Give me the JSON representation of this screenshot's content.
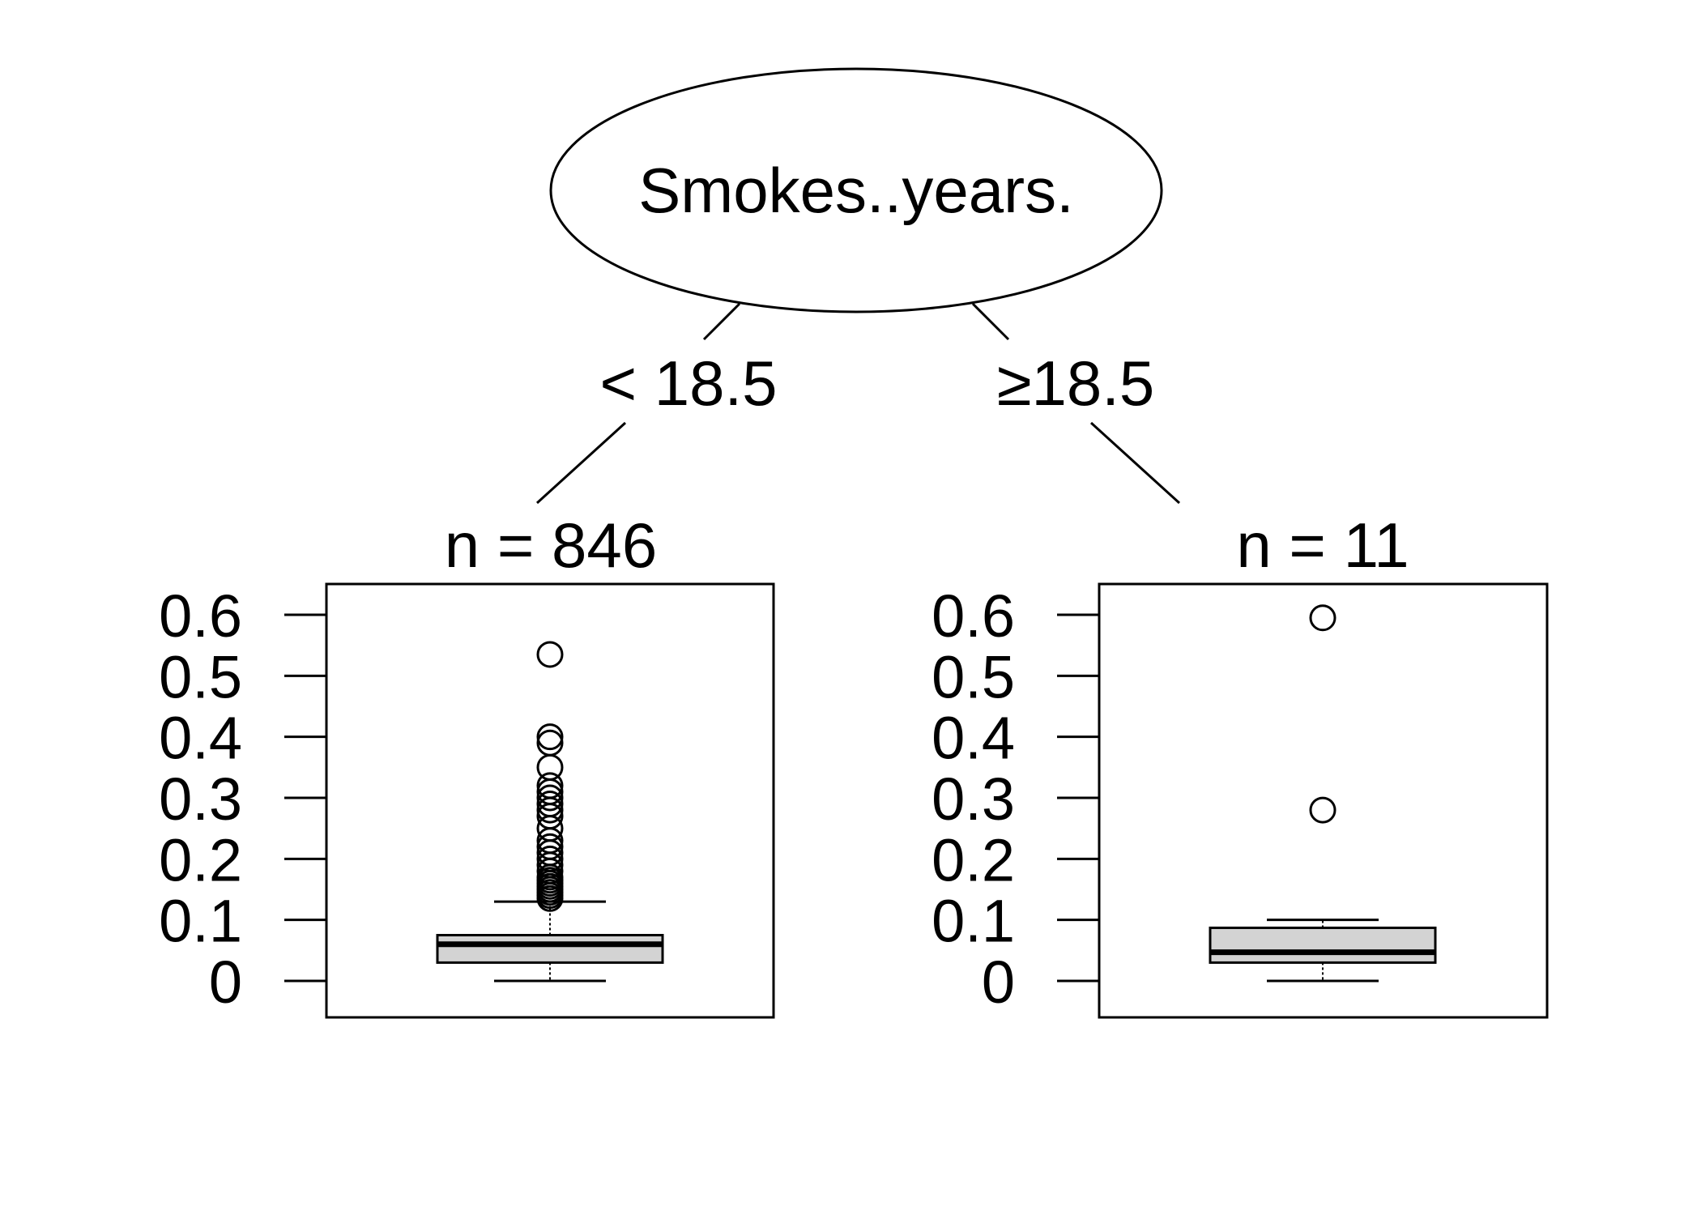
{
  "root": {
    "label": "Smokes..years."
  },
  "edges": [
    {
      "label": "< 18.5"
    },
    {
      "label": "≥18.5"
    }
  ],
  "chart_data": [
    {
      "type": "boxplot",
      "title": "n = 846",
      "ylim": [
        0,
        0.6
      ],
      "yticks": [
        "0",
        "0.1",
        "0.2",
        "0.3",
        "0.4",
        "0.5",
        "0.6"
      ],
      "box": {
        "min": 0.0,
        "q1": 0.03,
        "median": 0.06,
        "q3": 0.075,
        "max": 0.13
      },
      "outliers": [
        0.135,
        0.14,
        0.145,
        0.15,
        0.155,
        0.16,
        0.165,
        0.17,
        0.18,
        0.19,
        0.2,
        0.21,
        0.22,
        0.23,
        0.25,
        0.27,
        0.28,
        0.29,
        0.3,
        0.31,
        0.32,
        0.35,
        0.39,
        0.4,
        0.535
      ],
      "fill": "#d3d3d3"
    },
    {
      "type": "boxplot",
      "title": "n = 11",
      "ylim": [
        0,
        0.6
      ],
      "yticks": [
        "0",
        "0.1",
        "0.2",
        "0.3",
        "0.4",
        "0.5",
        "0.6"
      ],
      "box": {
        "min": 0.0,
        "q1": 0.03,
        "median": 0.047,
        "q3": 0.087,
        "max": 0.1
      },
      "outliers": [
        0.28,
        0.595
      ],
      "fill": "#d3d3d3"
    }
  ]
}
